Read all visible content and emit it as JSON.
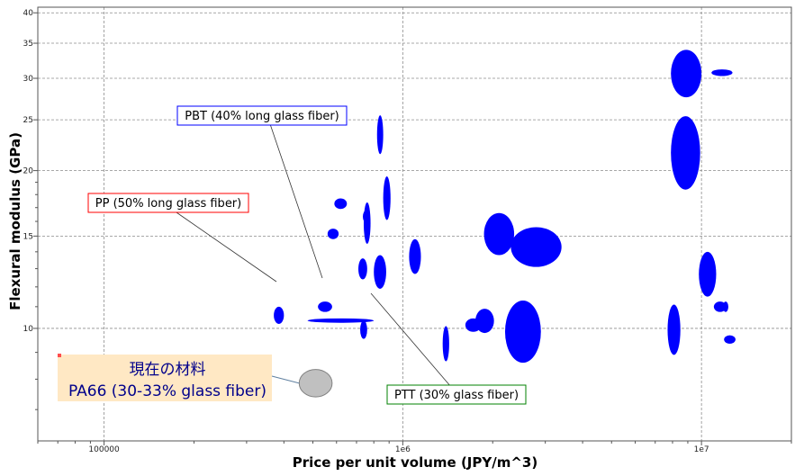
{
  "chart_data": {
    "type": "scatter",
    "xlabel": "Price per unit volume (JPY/m^3)",
    "ylabel": "Flexural modulus (GPa)",
    "x_scale": "log",
    "y_scale": "log",
    "xlim": [
      60000,
      20000000
    ],
    "ylim": [
      6.1,
      41
    ],
    "grid": true,
    "x_ticks": [
      {
        "value": 100000,
        "label": "100000"
      },
      {
        "value": 1000000,
        "label": "1e6"
      },
      {
        "value": 10000000,
        "label": "1e7"
      }
    ],
    "y_ticks": [
      {
        "value": 10,
        "label": "10"
      },
      {
        "value": 15,
        "label": "15"
      },
      {
        "value": 20,
        "label": "20"
      },
      {
        "value": 25,
        "label": "25"
      },
      {
        "value": 30,
        "label": "30"
      },
      {
        "value": 35,
        "label": "35"
      },
      {
        "value": 40,
        "label": "40"
      }
    ],
    "point_color": "#0000ff",
    "current_color": "#c0c0c0",
    "points": [
      {
        "xmin": 370000,
        "xmax": 400000,
        "ymin": 10.2,
        "ymax": 11.0
      },
      {
        "xmin": 520000,
        "xmax": 580000,
        "ymin": 10.75,
        "ymax": 11.25
      },
      {
        "xmin": 480000,
        "xmax": 800000,
        "ymin": 10.25,
        "ymax": 10.45
      },
      {
        "xmin": 560000,
        "xmax": 610000,
        "ymin": 14.8,
        "ymax": 15.5
      },
      {
        "xmin": 590000,
        "xmax": 650000,
        "ymin": 16.9,
        "ymax": 17.7
      },
      {
        "xmin": 720000,
        "xmax": 760000,
        "ymin": 9.55,
        "ymax": 10.35
      },
      {
        "xmin": 710000,
        "xmax": 760000,
        "ymin": 12.4,
        "ymax": 13.6
      },
      {
        "xmin": 740000,
        "xmax": 780000,
        "ymin": 14.5,
        "ymax": 17.4
      },
      {
        "xmin": 735000,
        "xmax": 775000,
        "ymin": 15.9,
        "ymax": 16.8
      },
      {
        "xmin": 800000,
        "xmax": 880000,
        "ymin": 11.9,
        "ymax": 13.8
      },
      {
        "xmin": 820000,
        "xmax": 860000,
        "ymin": 21.5,
        "ymax": 25.5
      },
      {
        "xmin": 860000,
        "xmax": 910000,
        "ymin": 16.1,
        "ymax": 19.5
      },
      {
        "xmin": 1050000,
        "xmax": 1150000,
        "ymin": 12.7,
        "ymax": 14.8
      },
      {
        "xmin": 1360000,
        "xmax": 1430000,
        "ymin": 8.65,
        "ymax": 10.1
      },
      {
        "xmin": 1620000,
        "xmax": 1830000,
        "ymin": 9.85,
        "ymax": 10.45
      },
      {
        "xmin": 1750000,
        "xmax": 2020000,
        "ymin": 9.8,
        "ymax": 10.9
      },
      {
        "xmin": 1870000,
        "xmax": 2360000,
        "ymin": 13.8,
        "ymax": 16.6
      },
      {
        "xmin": 2200000,
        "xmax": 2900000,
        "ymin": 8.6,
        "ymax": 11.3
      },
      {
        "xmin": 2300000,
        "xmax": 3400000,
        "ymin": 13.1,
        "ymax": 15.6
      },
      {
        "xmin": 7700000,
        "xmax": 8500000,
        "ymin": 8.9,
        "ymax": 11.1
      },
      {
        "xmin": 7900000,
        "xmax": 9900000,
        "ymin": 18.4,
        "ymax": 25.4
      },
      {
        "xmin": 7900000,
        "xmax": 10000000,
        "ymin": 27.6,
        "ymax": 34.0
      },
      {
        "xmin": 9800000,
        "xmax": 11200000,
        "ymin": 11.5,
        "ymax": 14.0
      },
      {
        "xmin": 10800000,
        "xmax": 12700000,
        "ymin": 30.3,
        "ymax": 31.2
      },
      {
        "xmin": 11000000,
        "xmax": 12100000,
        "ymin": 10.75,
        "ymax": 11.25
      },
      {
        "xmin": 11800000,
        "xmax": 12300000,
        "ymin": 10.75,
        "ymax": 11.25
      },
      {
        "xmin": 11900000,
        "xmax": 13000000,
        "ymin": 9.35,
        "ymax": 9.7
      }
    ],
    "current_material": {
      "xmin": 450000,
      "xmax": 580000,
      "ymin": 7.4,
      "ymax": 8.35
    },
    "annotations": [
      {
        "text": "PBT (40% long glass fiber)",
        "border": "#0000ff"
      },
      {
        "text": "PP (50% long glass fiber)",
        "border": "#ff0000"
      },
      {
        "text": "PTT (30% glass fiber)",
        "border": "#008000"
      }
    ],
    "current_label": {
      "line1": "現在の材料",
      "line2": "PA66 (30-33% glass fiber)",
      "background": "#ffe8c4",
      "marker_color": "#ff4d4d"
    }
  }
}
